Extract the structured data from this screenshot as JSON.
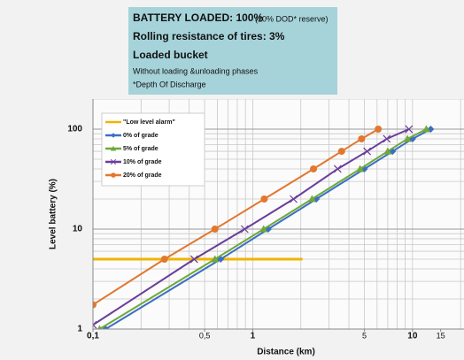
{
  "chart_data": {
    "type": "line",
    "header": {
      "line1": "BATTERY LOADED: 100%",
      "line1_note": "(20% DOD* reserve)",
      "line2": "Rolling resistance of tires: 3%",
      "line3": "Loaded bucket",
      "line4": "Without loading &unloading phases",
      "line5": "*Depth Of Discharge"
    },
    "x_label": "Distance (km)",
    "y_label": "Level battery (%)",
    "log_x": true,
    "log_y": true,
    "grid": true,
    "legend": "top-left",
    "xlim": [
      0.1,
      21
    ],
    "ylim": [
      1,
      200
    ],
    "xticks": [
      {
        "value": 0.1,
        "label": "0,1"
      },
      {
        "value": 0.5,
        "label": "0,5"
      },
      1,
      5,
      10,
      15
    ],
    "yticks": [
      1,
      10,
      100
    ],
    "series": [
      {
        "name": "\"Low level alarm\"",
        "color": "#f0b400",
        "marker": "none",
        "x": [
          0.1,
          2.05
        ],
        "values": [
          5,
          5
        ]
      },
      {
        "name": "0% of grade",
        "color": "#3a6fc4",
        "marker": "diamond",
        "x": [
          0.12,
          0.63,
          1.25,
          2.5,
          5,
          7.5,
          10,
          13
        ],
        "values": [
          1,
          5,
          10,
          20,
          40,
          60,
          80,
          100
        ]
      },
      {
        "name": "5%  of grade",
        "color": "#70a83c",
        "marker": "triangle",
        "x": [
          0.11,
          0.58,
          1.17,
          2.35,
          4.7,
          7,
          9.3,
          12.2
        ],
        "values": [
          1,
          5,
          10,
          20,
          40,
          60,
          80,
          100
        ]
      },
      {
        "name": "10% of grade",
        "color": "#6a3d9a",
        "marker": "x",
        "x": [
          0.1,
          0.43,
          0.89,
          1.8,
          3.4,
          5.2,
          6.9,
          9.5
        ],
        "values": [
          1.1,
          5,
          10,
          20,
          40,
          60,
          80,
          100
        ]
      },
      {
        "name": "20% of grade",
        "color": "#e2772f",
        "marker": "circle",
        "x": [
          0.1,
          0.28,
          0.58,
          1.18,
          2.4,
          3.6,
          4.8,
          6.1
        ],
        "values": [
          1.75,
          5,
          10,
          20,
          40,
          60,
          80,
          100
        ]
      }
    ]
  }
}
